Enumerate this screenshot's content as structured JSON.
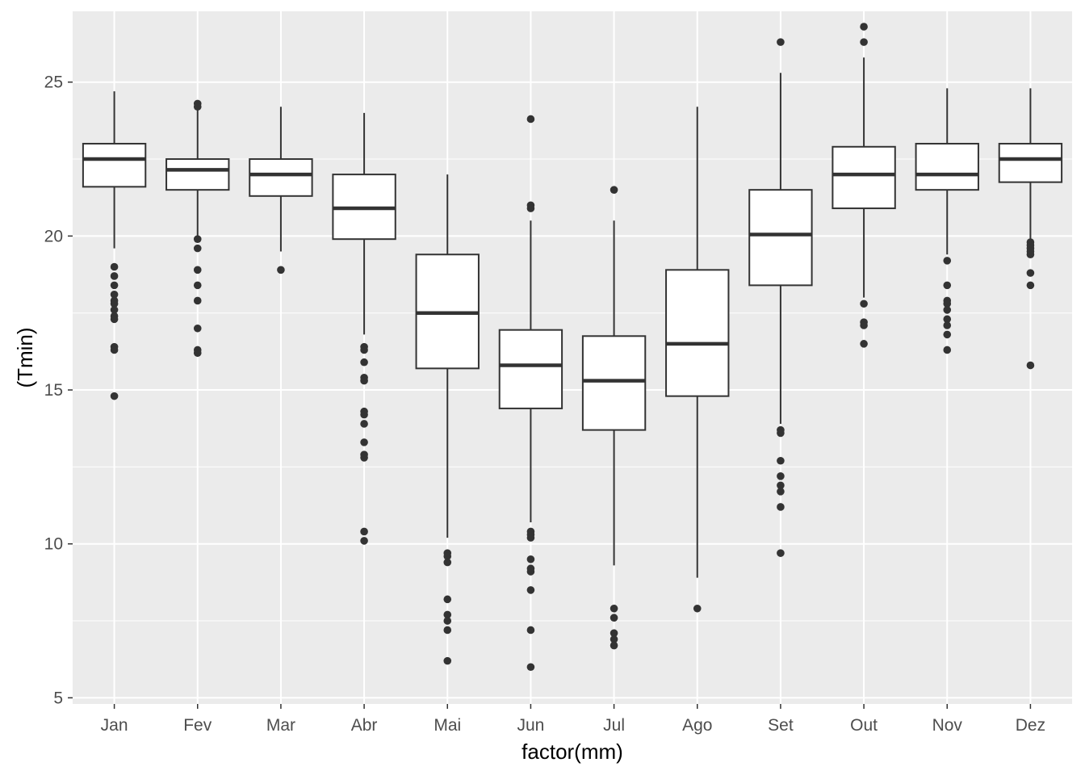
{
  "chart_data": {
    "type": "boxplot",
    "title": "",
    "xlabel": "factor(mm)",
    "ylabel": "(Tmin)",
    "ylim": [
      4.8,
      27.3
    ],
    "yticks": [
      5,
      10,
      15,
      20,
      25
    ],
    "grid": true,
    "theme": {
      "panel_background": "#EBEBEB",
      "grid_color": "#FFFFFF",
      "box_fill": "#FFFFFF",
      "line_color": "#333333"
    },
    "categories": [
      "Jan",
      "Fev",
      "Mar",
      "Abr",
      "Mai",
      "Jun",
      "Jul",
      "Ago",
      "Set",
      "Out",
      "Nov",
      "Dez"
    ],
    "boxes": [
      {
        "category": "Jan",
        "whisker_low": 19.6,
        "q1": 21.6,
        "median": 22.5,
        "q3": 23.0,
        "whisker_high": 24.7,
        "outliers": [
          19.0,
          18.7,
          18.4,
          18.1,
          17.9,
          17.8,
          17.6,
          17.4,
          17.3,
          16.4,
          16.3,
          14.8
        ]
      },
      {
        "category": "Fev",
        "whisker_low": 20.0,
        "q1": 21.5,
        "median": 22.15,
        "q3": 22.5,
        "whisker_high": 24.1,
        "outliers": [
          24.3,
          24.2,
          19.9,
          19.6,
          18.9,
          18.4,
          17.9,
          17.0,
          16.3,
          16.2
        ]
      },
      {
        "category": "Mar",
        "whisker_low": 19.5,
        "q1": 21.3,
        "median": 22.0,
        "q3": 22.5,
        "whisker_high": 24.2,
        "outliers": [
          18.9
        ]
      },
      {
        "category": "Abr",
        "whisker_low": 16.8,
        "q1": 19.9,
        "median": 20.9,
        "q3": 22.0,
        "whisker_high": 24.0,
        "outliers": [
          16.4,
          16.3,
          15.9,
          15.4,
          15.3,
          14.3,
          14.2,
          13.9,
          13.3,
          12.9,
          12.8,
          10.4,
          10.1
        ]
      },
      {
        "category": "Mai",
        "whisker_low": 10.2,
        "q1": 15.7,
        "median": 17.5,
        "q3": 19.4,
        "whisker_high": 22.0,
        "outliers": [
          9.7,
          9.6,
          9.4,
          8.2,
          7.7,
          7.5,
          7.2,
          6.2
        ]
      },
      {
        "category": "Jun",
        "whisker_low": 10.7,
        "q1": 14.4,
        "median": 15.8,
        "q3": 16.95,
        "whisker_high": 20.5,
        "outliers": [
          23.8,
          21.0,
          20.9,
          10.4,
          10.3,
          10.2,
          9.5,
          9.2,
          9.1,
          8.5,
          7.2,
          6.0
        ]
      },
      {
        "category": "Jul",
        "whisker_low": 9.3,
        "q1": 13.7,
        "median": 15.3,
        "q3": 16.75,
        "whisker_high": 20.5,
        "outliers": [
          21.5,
          7.9,
          7.6,
          7.1,
          6.9,
          6.7
        ]
      },
      {
        "category": "Ago",
        "whisker_low": 8.9,
        "q1": 14.8,
        "median": 16.5,
        "q3": 18.9,
        "whisker_high": 24.2,
        "outliers": [
          7.9
        ]
      },
      {
        "category": "Set",
        "whisker_low": 13.9,
        "q1": 18.4,
        "median": 20.05,
        "q3": 21.5,
        "whisker_high": 25.3,
        "outliers": [
          26.3,
          13.7,
          13.6,
          12.7,
          12.2,
          11.9,
          11.7,
          11.2,
          9.7
        ]
      },
      {
        "category": "Out",
        "whisker_low": 18.0,
        "q1": 20.9,
        "median": 22.0,
        "q3": 22.9,
        "whisker_high": 25.8,
        "outliers": [
          26.8,
          26.3,
          17.8,
          17.2,
          17.1,
          16.5
        ]
      },
      {
        "category": "Nov",
        "whisker_low": 19.4,
        "q1": 21.5,
        "median": 22.0,
        "q3": 23.0,
        "whisker_high": 24.8,
        "outliers": [
          19.2,
          18.4,
          17.9,
          17.8,
          17.6,
          17.3,
          17.1,
          16.8,
          16.3
        ]
      },
      {
        "category": "Dez",
        "whisker_low": 19.9,
        "q1": 21.75,
        "median": 22.5,
        "q3": 23.0,
        "whisker_high": 24.8,
        "outliers": [
          19.8,
          19.7,
          19.6,
          19.5,
          19.4,
          18.8,
          18.4,
          15.8
        ]
      }
    ]
  }
}
